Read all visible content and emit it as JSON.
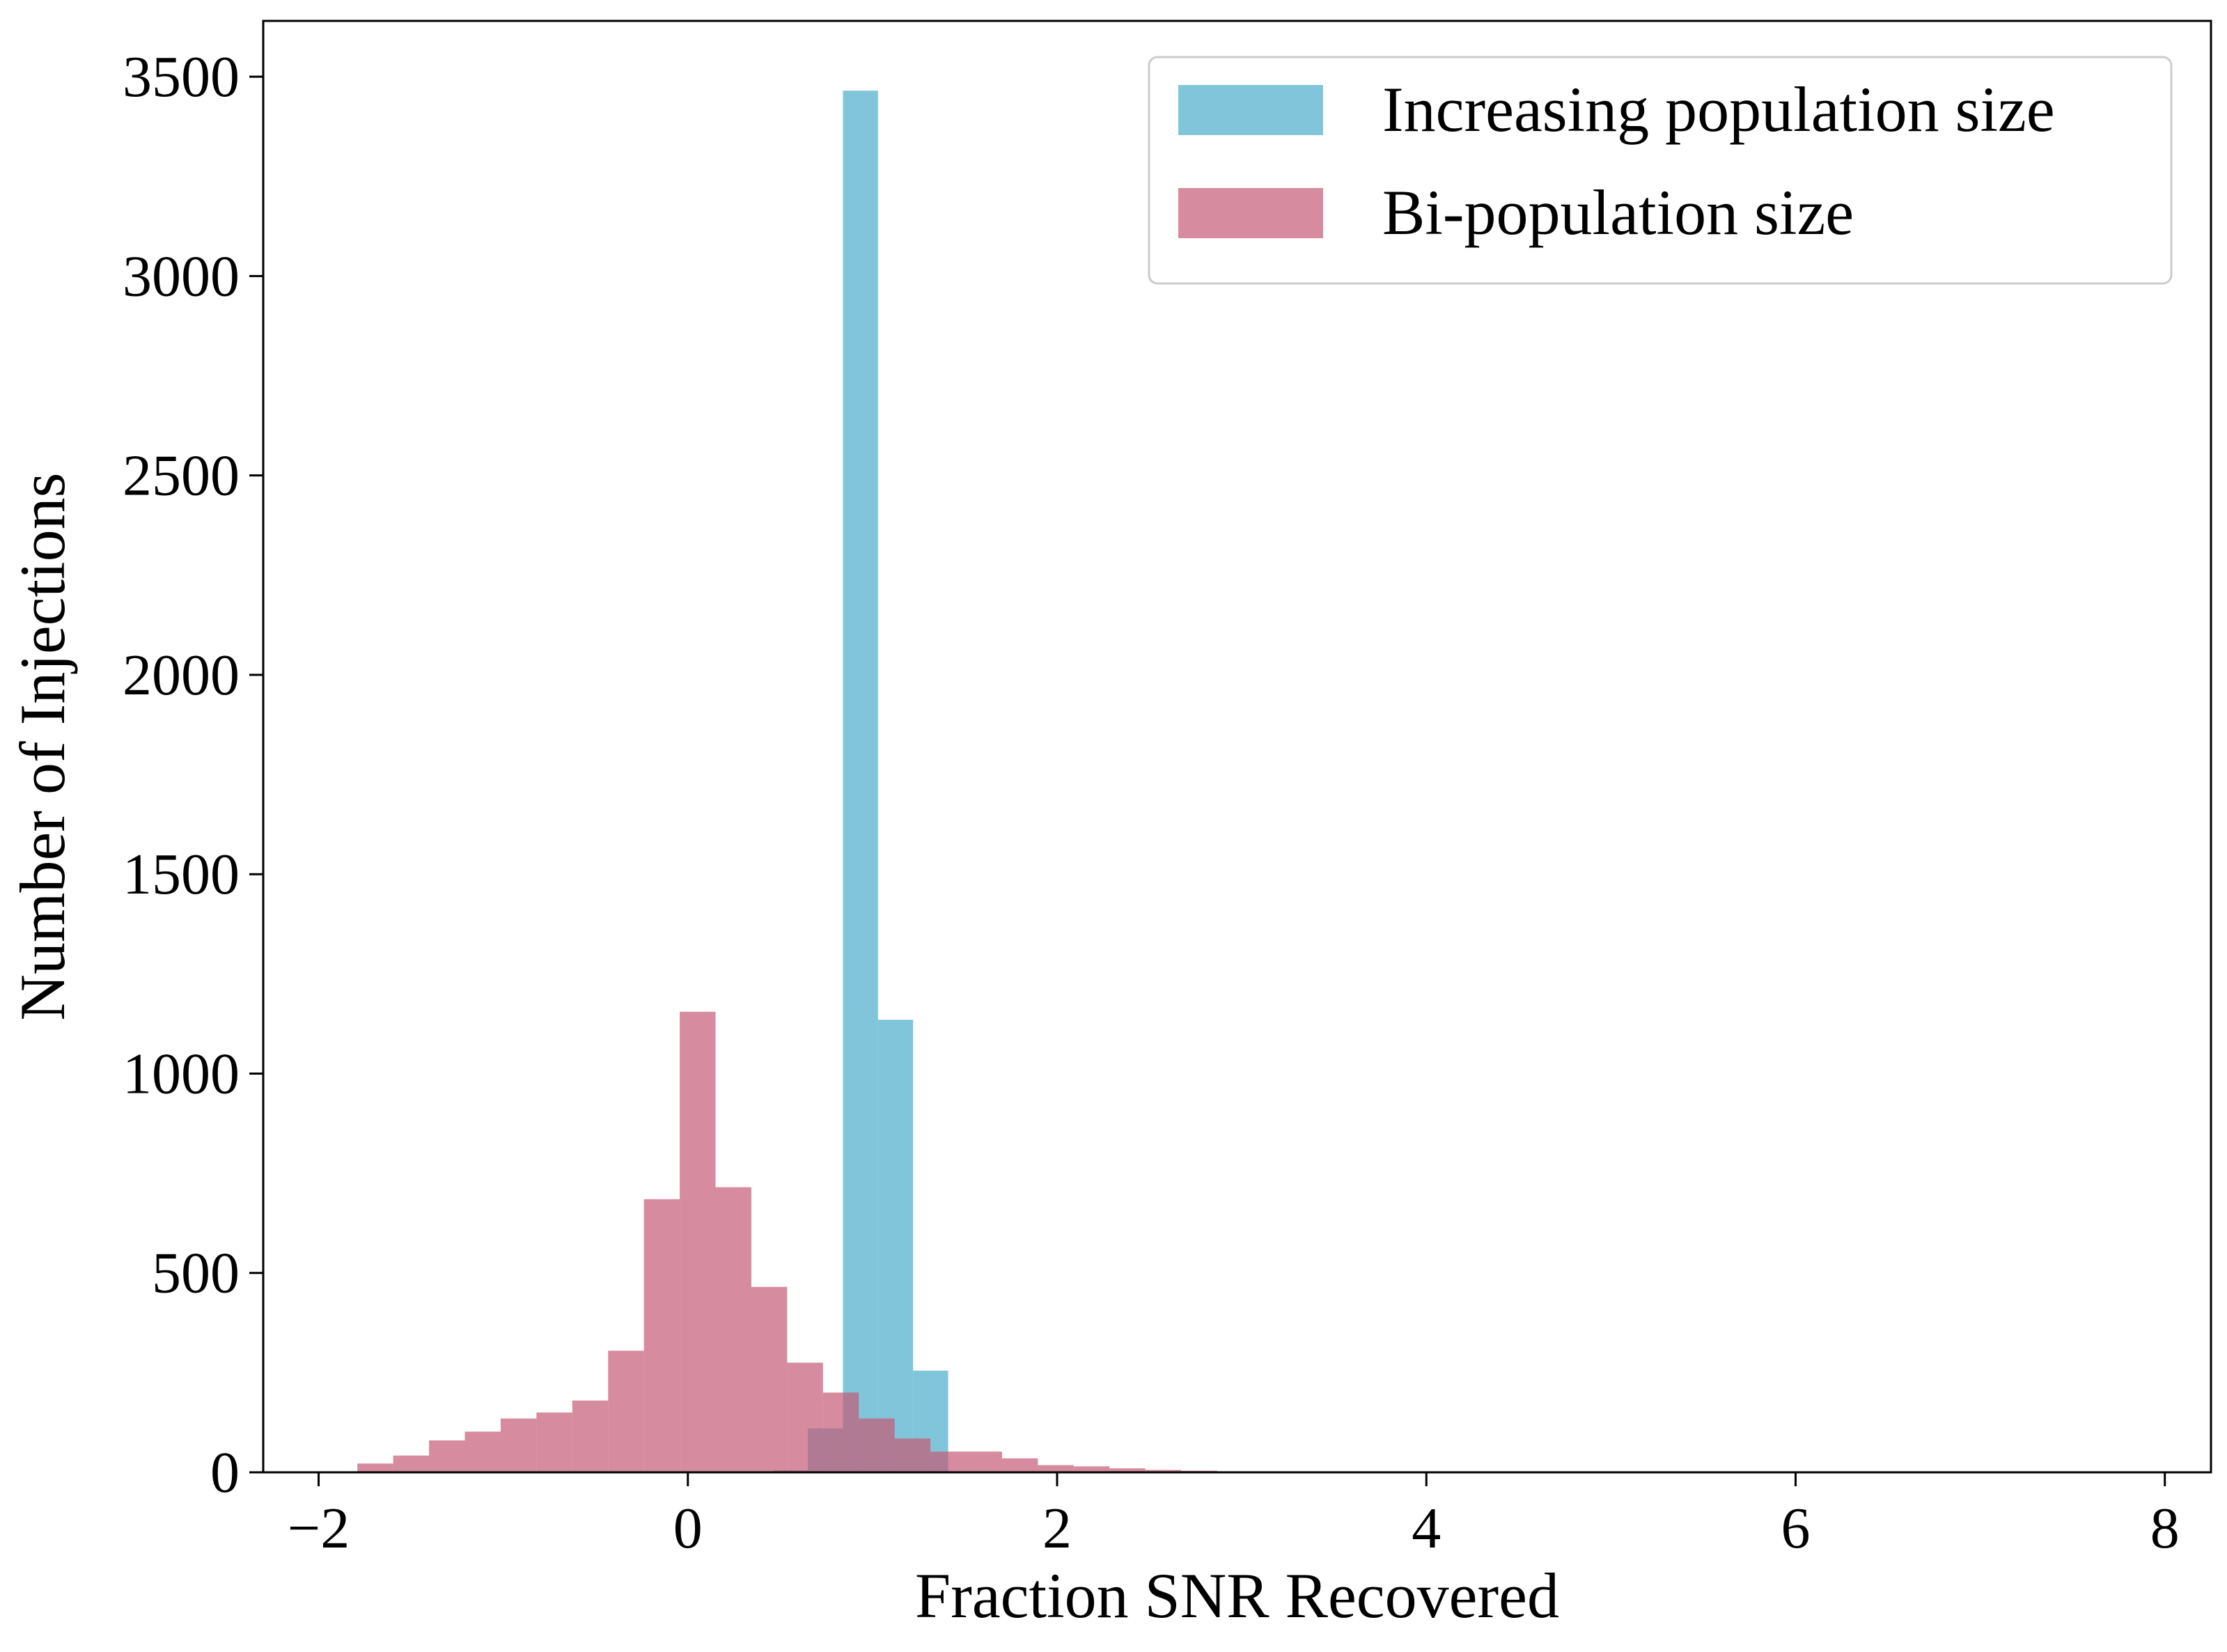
{
  "chart_data": {
    "type": "histogram",
    "title": "",
    "xlabel": "Fraction SNR Recovered",
    "ylabel": "Number of Injections",
    "xlim": [
      -2.3,
      8.25
    ],
    "ylim": [
      0,
      3640
    ],
    "grid": false,
    "legend_position": "top-right",
    "xticks": [
      -2,
      0,
      2,
      4,
      6,
      8
    ],
    "yticks": [
      0,
      500,
      1000,
      1500,
      2000,
      2500,
      3000,
      3500
    ],
    "xtick_labels": [
      "−2",
      "0",
      "2",
      "4",
      "6",
      "8"
    ],
    "ytick_labels": [
      "0",
      "500",
      "1000",
      "1500",
      "2000",
      "2500",
      "3000",
      "3500"
    ],
    "series": [
      {
        "name": "Increasing population size",
        "color": "#4cadcc",
        "opacity": 0.7,
        "bin_edges": [
          0.46,
          0.65,
          0.84,
          1.03,
          1.22,
          1.41
        ],
        "counts": [
          5,
          110,
          3465,
          1135,
          255
        ]
      },
      {
        "name": "Bi-population size",
        "color": "#c45a75",
        "opacity": 0.7,
        "bin_edges": [
          -1.79,
          -1.596,
          -1.402,
          -1.208,
          -1.014,
          -0.82,
          -0.626,
          -0.432,
          -0.238,
          -0.044,
          0.15,
          0.344,
          0.538,
          0.732,
          0.926,
          1.12,
          1.314,
          1.508,
          1.702,
          1.896,
          2.09,
          2.284,
          2.478,
          2.672,
          2.866,
          3.06,
          3.254
        ],
        "counts": [
          22,
          42,
          80,
          102,
          135,
          150,
          180,
          305,
          685,
          1155,
          715,
          465,
          275,
          200,
          135,
          85,
          52,
          52,
          35,
          18,
          15,
          10,
          6,
          4,
          2,
          2
        ]
      }
    ]
  }
}
